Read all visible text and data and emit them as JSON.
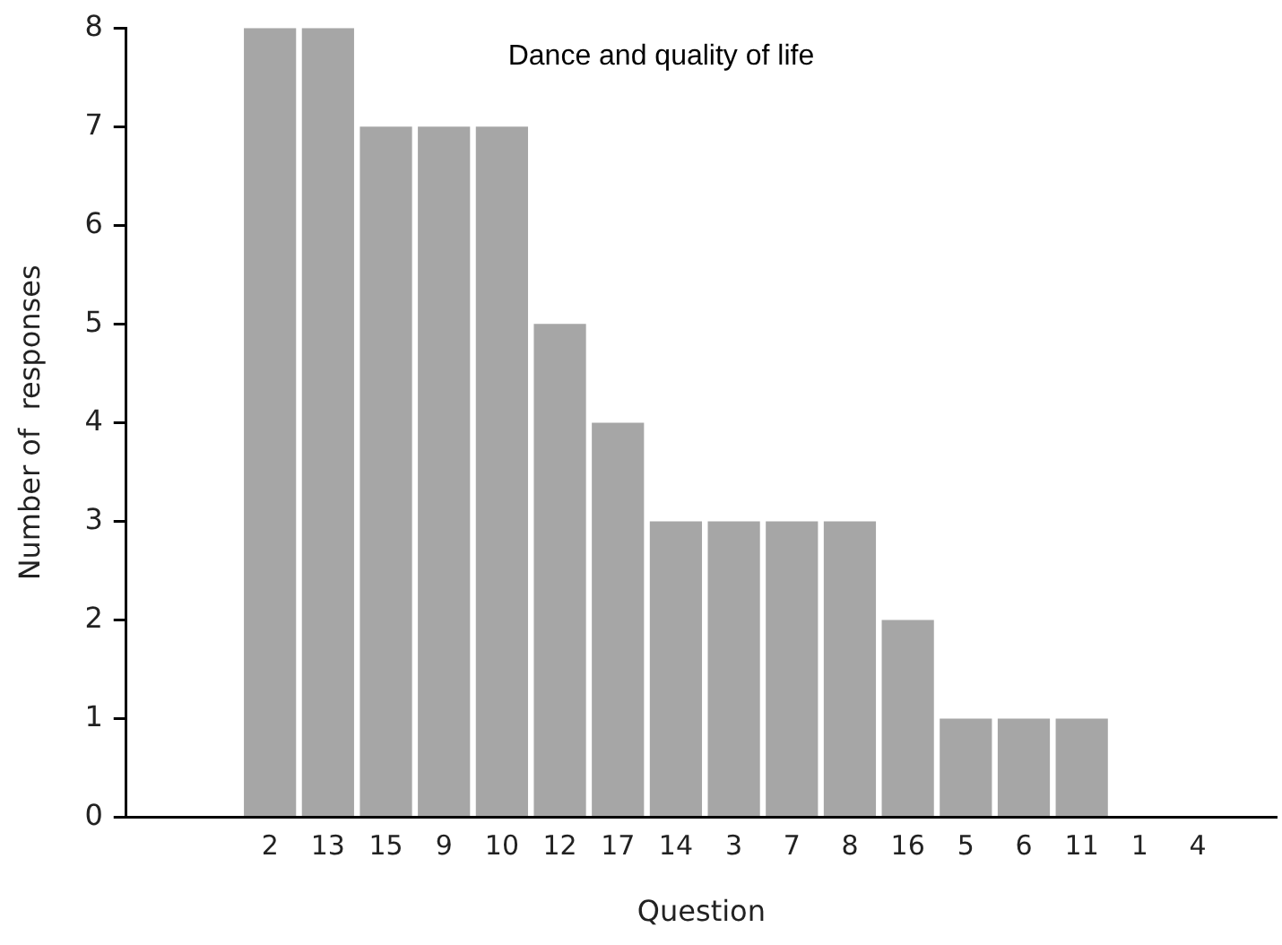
{
  "chart_data": {
    "type": "bar",
    "title": "Dance and quality of life",
    "xlabel": "Question",
    "ylabel": "Number of  responses",
    "categories": [
      "2",
      "13",
      "15",
      "9",
      "10",
      "12",
      "17",
      "14",
      "3",
      "7",
      "8",
      "16",
      "5",
      "6",
      "11",
      "1",
      "4"
    ],
    "values": [
      8,
      8,
      7,
      7,
      7,
      5,
      4,
      3,
      3,
      3,
      3,
      2,
      1,
      1,
      1,
      0,
      0
    ],
    "color": "#a6a6a6",
    "ylim": [
      0,
      8
    ],
    "yticks": [
      0,
      1,
      2,
      3,
      4,
      5,
      6,
      7,
      8
    ],
    "grid": false
  }
}
